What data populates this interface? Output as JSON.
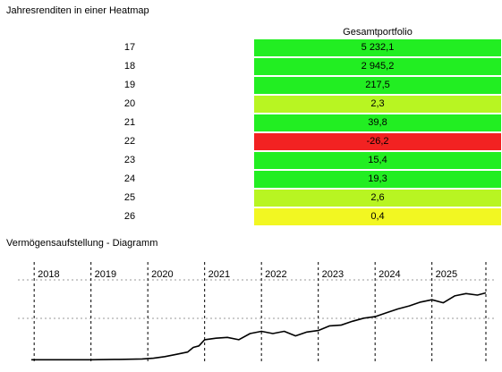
{
  "heatmap": {
    "title": "Jahresrenditen in einer Heatmap",
    "column_header": "Gesamtportfolio",
    "rows": [
      {
        "year": "17",
        "value": "5 232,1",
        "color": "#22ee22"
      },
      {
        "year": "18",
        "value": "2 945,2",
        "color": "#22ee22"
      },
      {
        "year": "19",
        "value": "217,5",
        "color": "#22ee22"
      },
      {
        "year": "20",
        "value": "2,3",
        "color": "#b8f522"
      },
      {
        "year": "21",
        "value": "39,8",
        "color": "#22ee22"
      },
      {
        "year": "22",
        "value": "-26,2",
        "color": "#f22222"
      },
      {
        "year": "23",
        "value": "15,4",
        "color": "#22ee22"
      },
      {
        "year": "24",
        "value": "19,3",
        "color": "#22ee22"
      },
      {
        "year": "25",
        "value": "2,6",
        "color": "#b8f522"
      },
      {
        "year": "26",
        "value": "0,4",
        "color": "#f2f722"
      }
    ]
  },
  "diagram": {
    "title": "Vermögensaufstellung - Diagramm"
  },
  "chart_data": {
    "type": "line",
    "title": "Vermögensaufstellung - Diagramm",
    "xlabel": "",
    "ylabel": "",
    "x_ticks": [
      "2018",
      "2019",
      "2020",
      "2021",
      "2022",
      "2023",
      "2024",
      "2025"
    ],
    "x_range": [
      2017.95,
      2025.95
    ],
    "y_range": [
      0,
      100
    ],
    "grid": true,
    "series": [
      {
        "values": [
          [
            2017.95,
            2
          ],
          [
            2018.5,
            2
          ],
          [
            2019.0,
            2
          ],
          [
            2019.5,
            2.5
          ],
          [
            2019.9,
            3
          ],
          [
            2020.1,
            4
          ],
          [
            2020.3,
            6
          ],
          [
            2020.5,
            9
          ],
          [
            2020.7,
            12
          ],
          [
            2020.8,
            18
          ],
          [
            2020.9,
            20
          ],
          [
            2021.0,
            28
          ],
          [
            2021.2,
            30
          ],
          [
            2021.4,
            31
          ],
          [
            2021.6,
            28
          ],
          [
            2021.8,
            36
          ],
          [
            2022.0,
            39
          ],
          [
            2022.2,
            36
          ],
          [
            2022.4,
            39
          ],
          [
            2022.6,
            33
          ],
          [
            2022.8,
            38
          ],
          [
            2023.0,
            40
          ],
          [
            2023.2,
            46
          ],
          [
            2023.4,
            47
          ],
          [
            2023.6,
            52
          ],
          [
            2023.8,
            56
          ],
          [
            2024.0,
            58
          ],
          [
            2024.2,
            63
          ],
          [
            2024.4,
            68
          ],
          [
            2024.6,
            72
          ],
          [
            2024.8,
            77
          ],
          [
            2025.0,
            80
          ],
          [
            2025.2,
            76
          ],
          [
            2025.4,
            85
          ],
          [
            2025.6,
            88
          ],
          [
            2025.8,
            86
          ],
          [
            2025.95,
            89
          ]
        ]
      }
    ]
  }
}
